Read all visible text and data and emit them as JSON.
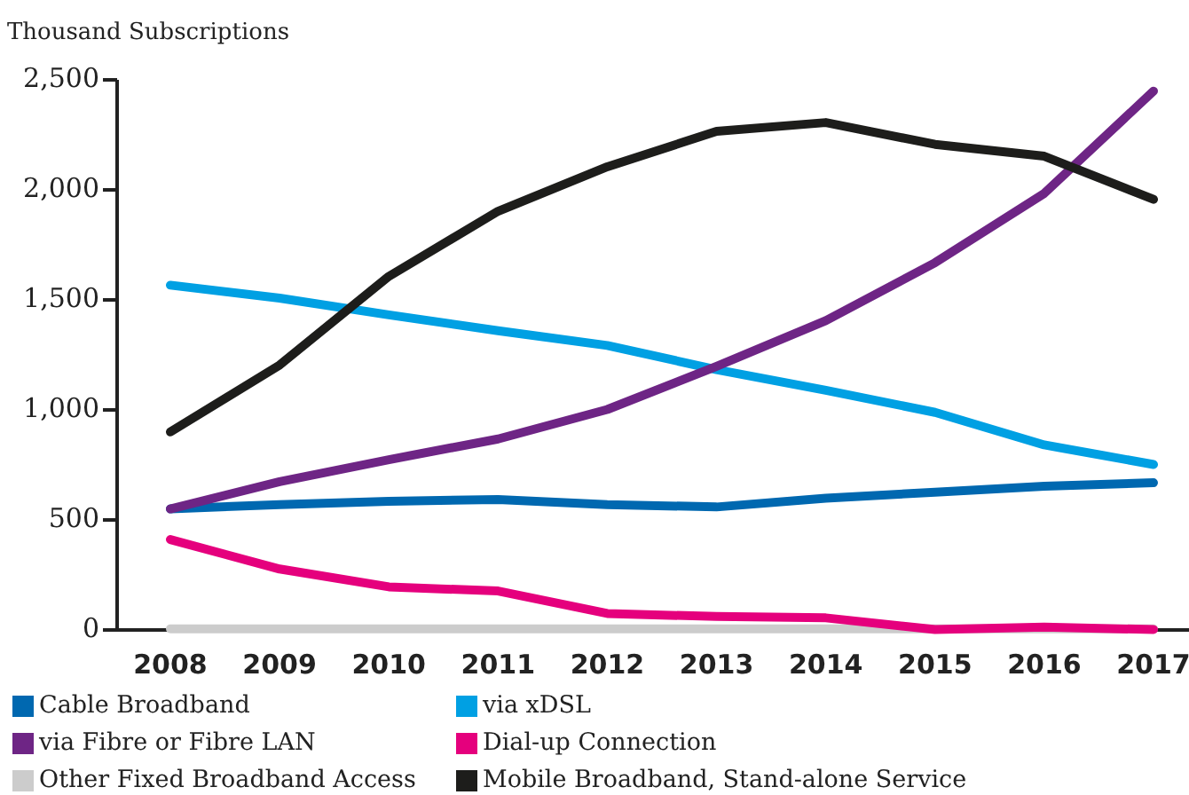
{
  "chart_data": {
    "type": "line",
    "ylabel": "Thousand Subscriptions",
    "categories": [
      "2008",
      "2009",
      "2010",
      "2011",
      "2012",
      "2013",
      "2014",
      "2015",
      "2016",
      "2017"
    ],
    "ylim": [
      0,
      2500
    ],
    "yticks": [
      {
        "value": 0,
        "label": "0"
      },
      {
        "value": 500,
        "label": "500"
      },
      {
        "value": 1000,
        "label": "1,000"
      },
      {
        "value": 1500,
        "label": "1,500"
      },
      {
        "value": 2000,
        "label": "2,000"
      },
      {
        "value": 2500,
        "label": "2,500"
      }
    ],
    "grid": false,
    "legend": "bottom",
    "marker": "none",
    "line_style": "solid",
    "series": [
      {
        "name": "Cable Broadband",
        "color": "#0068b0",
        "values": [
          550,
          570,
          585,
          593,
          570,
          559,
          599,
          626,
          653,
          669
        ]
      },
      {
        "name": "via xDSL",
        "color": "#00a0e3",
        "values": [
          1567,
          1508,
          1432,
          1360,
          1293,
          1183,
          1089,
          989,
          841,
          752
        ]
      },
      {
        "name": "via Fibre or Fibre LAN",
        "color": "#6e2585",
        "values": [
          550,
          674,
          774,
          868,
          1002,
          1198,
          1406,
          1669,
          1984,
          2449
        ]
      },
      {
        "name": "Dial-up Connection",
        "color": "#e5007d",
        "values": [
          411,
          277,
          196,
          177,
          75,
          61,
          55,
          2,
          13,
          2
        ]
      },
      {
        "name": "Other Fixed Broadband Access",
        "color": "#cccccc",
        "values": [
          5,
          5,
          5,
          5,
          5,
          5,
          5,
          5,
          5,
          5
        ]
      },
      {
        "name": "Mobile Broadband, Stand-alone Service",
        "color": "#1d1d1b",
        "values": [
          900,
          1204,
          1607,
          1903,
          2105,
          2266,
          2306,
          2207,
          2153,
          1957
        ]
      }
    ]
  }
}
